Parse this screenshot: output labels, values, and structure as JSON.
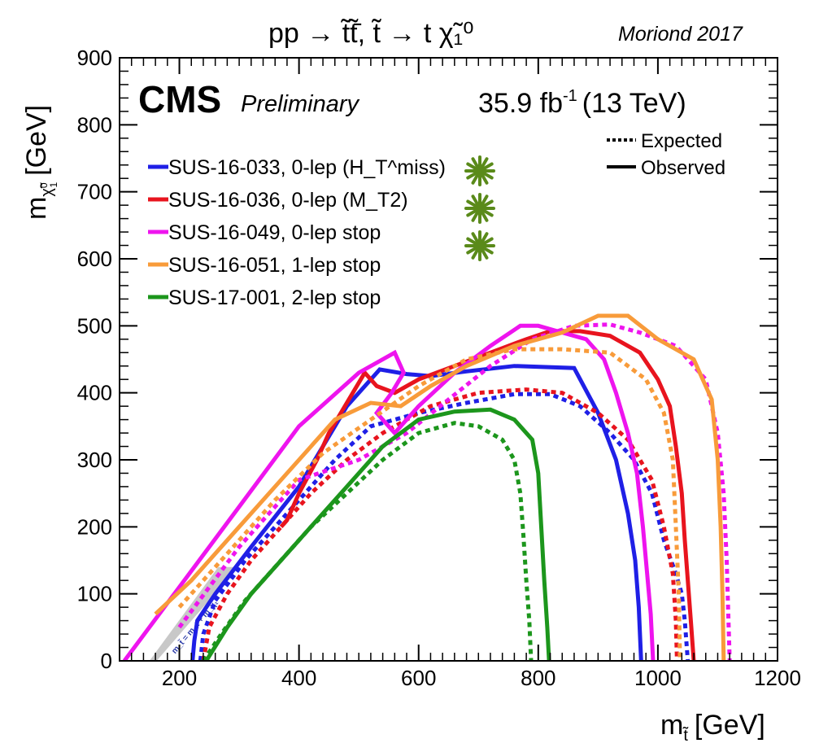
{
  "chart_data": {
    "type": "line",
    "title": "pp → t̃t̃̄,  t̃ → t χ̃₁⁰",
    "experiment": "CMS",
    "experiment_qualifier": "Preliminary",
    "luminosity": "35.9 fb",
    "luminosity_exp": "-1",
    "energy": "(13 TeV)",
    "conference": "Moriond 2017",
    "xlabel": "m",
    "xlabel_sub": "t̃",
    "xlabel_unit": "[GeV]",
    "ylabel": "m",
    "ylabel_sub": "χ̃",
    "ylabel_subsub": "0",
    "ylabel_subsub2": "1",
    "ylabel_unit": "[GeV]",
    "xlim": [
      100,
      1200
    ],
    "ylim": [
      0,
      900
    ],
    "xticks": [
      200,
      400,
      600,
      800,
      1000,
      1200
    ],
    "yticks": [
      0,
      100,
      200,
      300,
      400,
      500,
      600,
      700,
      800,
      900
    ],
    "xtick_labels": [
      "200",
      "400",
      "600",
      "800",
      "1000",
      "1200"
    ],
    "ytick_labels": [
      "0",
      "100",
      "200",
      "300",
      "400",
      "500",
      "600",
      "700",
      "800",
      "900"
    ],
    "grid": false,
    "style_legend": [
      {
        "label": "Expected",
        "dash": "dotted"
      },
      {
        "label": "Observed",
        "dash": "solid"
      }
    ],
    "diagonal_label": "m_t̃ = m_t + m_χ̃₁⁰",
    "series": [
      {
        "name": "SUS-16-033, 0-lep (H_T^miss)",
        "color": "#1f1fe6",
        "observed": [
          [
            222,
            0
          ],
          [
            225,
            30
          ],
          [
            230,
            60
          ],
          [
            260,
            100
          ],
          [
            320,
            170
          ],
          [
            400,
            260
          ],
          [
            480,
            380
          ],
          [
            535,
            435
          ],
          [
            580,
            428
          ],
          [
            620,
            425
          ],
          [
            680,
            432
          ],
          [
            760,
            440
          ],
          [
            860,
            437
          ],
          [
            900,
            370
          ],
          [
            930,
            300
          ],
          [
            950,
            220
          ],
          [
            962,
            150
          ],
          [
            968,
            80
          ],
          [
            972,
            0
          ]
        ],
        "expected": [
          [
            235,
            0
          ],
          [
            240,
            40
          ],
          [
            260,
            90
          ],
          [
            310,
            150
          ],
          [
            380,
            220
          ],
          [
            460,
            300
          ],
          [
            520,
            350
          ],
          [
            600,
            370
          ],
          [
            680,
            385
          ],
          [
            760,
            398
          ],
          [
            820,
            398
          ],
          [
            870,
            380
          ],
          [
            920,
            340
          ],
          [
            960,
            300
          ],
          [
            990,
            250
          ],
          [
            1010,
            180
          ],
          [
            1030,
            130
          ],
          [
            1040,
            100
          ],
          [
            1045,
            60
          ],
          [
            1050,
            0
          ]
        ]
      },
      {
        "name": "SUS-16-036, 0-lep (M_T2)",
        "color": "#e8141e",
        "observed": [
          [
            370,
            200
          ],
          [
            380,
            210
          ],
          [
            400,
            250
          ],
          [
            430,
            300
          ],
          [
            450,
            340
          ],
          [
            470,
            370
          ],
          [
            490,
            400
          ],
          [
            510,
            430
          ],
          [
            530,
            410
          ],
          [
            560,
            400
          ],
          [
            600,
            420
          ],
          [
            660,
            440
          ],
          [
            720,
            460
          ],
          [
            780,
            480
          ],
          [
            820,
            492
          ],
          [
            870,
            492
          ],
          [
            920,
            485
          ],
          [
            970,
            460
          ],
          [
            1000,
            420
          ],
          [
            1020,
            380
          ],
          [
            1030,
            320
          ],
          [
            1040,
            250
          ],
          [
            1045,
            180
          ],
          [
            1050,
            120
          ],
          [
            1055,
            60
          ],
          [
            1060,
            0
          ]
        ],
        "expected": [
          [
            240,
            0
          ],
          [
            250,
            50
          ],
          [
            280,
            100
          ],
          [
            320,
            150
          ],
          [
            370,
            200
          ],
          [
            420,
            250
          ],
          [
            480,
            300
          ],
          [
            540,
            340
          ],
          [
            620,
            380
          ],
          [
            700,
            400
          ],
          [
            780,
            405
          ],
          [
            840,
            400
          ],
          [
            900,
            370
          ],
          [
            950,
            330
          ],
          [
            990,
            270
          ],
          [
            1010,
            200
          ],
          [
            1025,
            130
          ],
          [
            1030,
            60
          ],
          [
            1032,
            0
          ]
        ]
      },
      {
        "name": "SUS-16-049, 0-lep stop",
        "color": "#ee14ee",
        "observed": [
          [
            108,
            0
          ],
          [
            200,
            110
          ],
          [
            300,
            230
          ],
          [
            400,
            350
          ],
          [
            500,
            430
          ],
          [
            560,
            460
          ],
          [
            575,
            430
          ],
          [
            555,
            400
          ],
          [
            530,
            370
          ],
          [
            560,
            340
          ],
          [
            600,
            380
          ],
          [
            660,
            430
          ],
          [
            720,
            470
          ],
          [
            770,
            500
          ],
          [
            800,
            500
          ],
          [
            840,
            490
          ],
          [
            880,
            480
          ],
          [
            910,
            450
          ],
          [
            930,
            400
          ],
          [
            950,
            340
          ],
          [
            965,
            280
          ],
          [
            975,
            200
          ],
          [
            982,
            130
          ],
          [
            988,
            70
          ],
          [
            992,
            0
          ]
        ],
        "expected": [
          [
            200,
            50
          ],
          [
            300,
            170
          ],
          [
            400,
            270
          ],
          [
            500,
            300
          ],
          [
            580,
            340
          ],
          [
            650,
            390
          ],
          [
            720,
            440
          ],
          [
            790,
            480
          ],
          [
            860,
            500
          ],
          [
            920,
            502
          ],
          [
            970,
            490
          ],
          [
            1030,
            470
          ],
          [
            1080,
            420
          ],
          [
            1100,
            340
          ],
          [
            1110,
            250
          ],
          [
            1115,
            150
          ],
          [
            1118,
            60
          ],
          [
            1120,
            0
          ]
        ]
      },
      {
        "name": "SUS-16-051, 1-lep stop",
        "color": "#f89b3a",
        "observed": [
          [
            160,
            70
          ],
          [
            220,
            120
          ],
          [
            300,
            200
          ],
          [
            380,
            280
          ],
          [
            460,
            360
          ],
          [
            520,
            385
          ],
          [
            570,
            380
          ],
          [
            620,
            410
          ],
          [
            680,
            440
          ],
          [
            760,
            470
          ],
          [
            840,
            490
          ],
          [
            900,
            515
          ],
          [
            950,
            515
          ],
          [
            1000,
            480
          ],
          [
            1060,
            450
          ],
          [
            1090,
            390
          ],
          [
            1100,
            300
          ],
          [
            1105,
            200
          ],
          [
            1108,
            100
          ],
          [
            1110,
            0
          ]
        ],
        "expected": [
          [
            200,
            80
          ],
          [
            280,
            160
          ],
          [
            360,
            240
          ],
          [
            440,
            310
          ],
          [
            520,
            360
          ],
          [
            600,
            410
          ],
          [
            680,
            450
          ],
          [
            760,
            465
          ],
          [
            840,
            465
          ],
          [
            920,
            460
          ],
          [
            980,
            420
          ],
          [
            1010,
            370
          ],
          [
            1025,
            300
          ],
          [
            1030,
            200
          ],
          [
            1035,
            100
          ],
          [
            1037,
            0
          ]
        ]
      },
      {
        "name": "SUS-17-001, 2-lep stop",
        "color": "#1c961c",
        "observed": [
          [
            245,
            0
          ],
          [
            280,
            50
          ],
          [
            320,
            100
          ],
          [
            370,
            150
          ],
          [
            420,
            200
          ],
          [
            480,
            260
          ],
          [
            540,
            320
          ],
          [
            600,
            360
          ],
          [
            660,
            372
          ],
          [
            720,
            375
          ],
          [
            760,
            360
          ],
          [
            790,
            330
          ],
          [
            800,
            280
          ],
          [
            805,
            200
          ],
          [
            810,
            120
          ],
          [
            815,
            50
          ],
          [
            818,
            0
          ]
        ],
        "expected": [
          [
            240,
            0
          ],
          [
            270,
            40
          ],
          [
            310,
            90
          ],
          [
            360,
            140
          ],
          [
            420,
            200
          ],
          [
            480,
            250
          ],
          [
            540,
            300
          ],
          [
            600,
            340
          ],
          [
            660,
            355
          ],
          [
            700,
            350
          ],
          [
            740,
            330
          ],
          [
            760,
            300
          ],
          [
            770,
            250
          ],
          [
            775,
            190
          ],
          [
            780,
            120
          ],
          [
            785,
            60
          ],
          [
            788,
            0
          ]
        ]
      }
    ]
  }
}
